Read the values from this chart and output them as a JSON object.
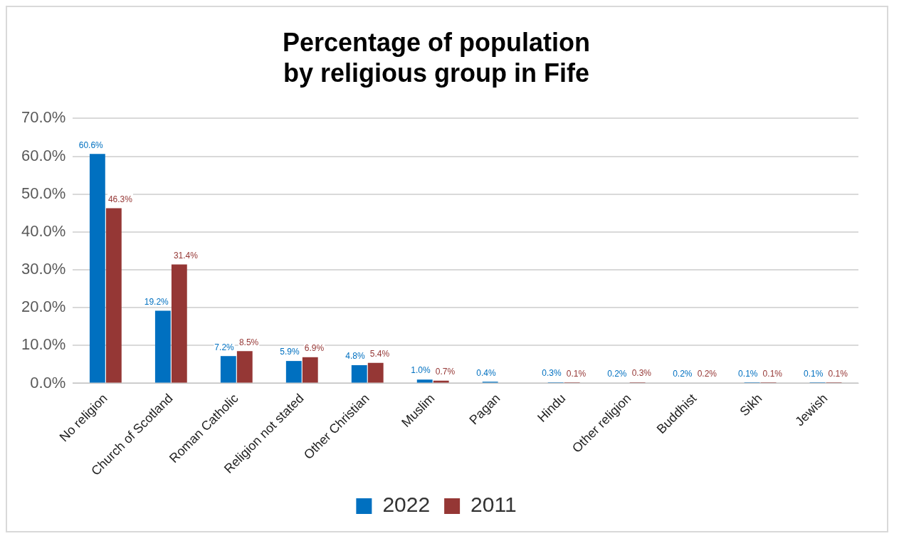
{
  "chart_data": {
    "type": "bar",
    "title": "Percentage of population by religious group in Fife",
    "categories": [
      "No religion",
      "Church of Scotland",
      "Roman Catholic",
      "Religion not stated",
      "Other Christian",
      "Muslim",
      "Pagan",
      "Hindu",
      "Other religion",
      "Buddhist",
      "Sikh",
      "Jewish"
    ],
    "series": [
      {
        "name": "2022",
        "color": "#0070c0",
        "values": [
          60.6,
          19.2,
          7.2,
          5.9,
          4.8,
          1.0,
          0.4,
          0.3,
          0.2,
          0.2,
          0.1,
          0.1
        ],
        "value_labels": [
          "60.6%",
          "19.2%",
          "7.2%",
          "5.9%",
          "4.8%",
          "1.0%",
          "0.4%",
          "0.3%",
          "0.2%",
          "0.2%",
          "0.1%",
          "0.1%"
        ]
      },
      {
        "name": "2011",
        "color": "#953735",
        "values": [
          46.3,
          31.4,
          8.5,
          6.9,
          5.4,
          0.7,
          null,
          0.1,
          0.3,
          0.2,
          0.1,
          0.1
        ],
        "value_labels": [
          "46.3%",
          "31.4%",
          "8.5%",
          "6.9%",
          "5.4%",
          "0.7%",
          null,
          "0.1%",
          "0.3%",
          "0.2%",
          "0.1%",
          "0.1%"
        ]
      }
    ],
    "ylim": [
      0,
      70
    ],
    "yticks": [
      {
        "value": 0,
        "label": "0.0%"
      },
      {
        "value": 10,
        "label": "10.0%"
      },
      {
        "value": 20,
        "label": "20.0%"
      },
      {
        "value": 30,
        "label": "30.0%"
      },
      {
        "value": 40,
        "label": "40.0%"
      },
      {
        "value": 50,
        "label": "50.0%"
      },
      {
        "value": 60,
        "label": "60.0%"
      },
      {
        "value": 70,
        "label": "70.0%"
      }
    ],
    "grid": "y",
    "legend": "bottom"
  }
}
